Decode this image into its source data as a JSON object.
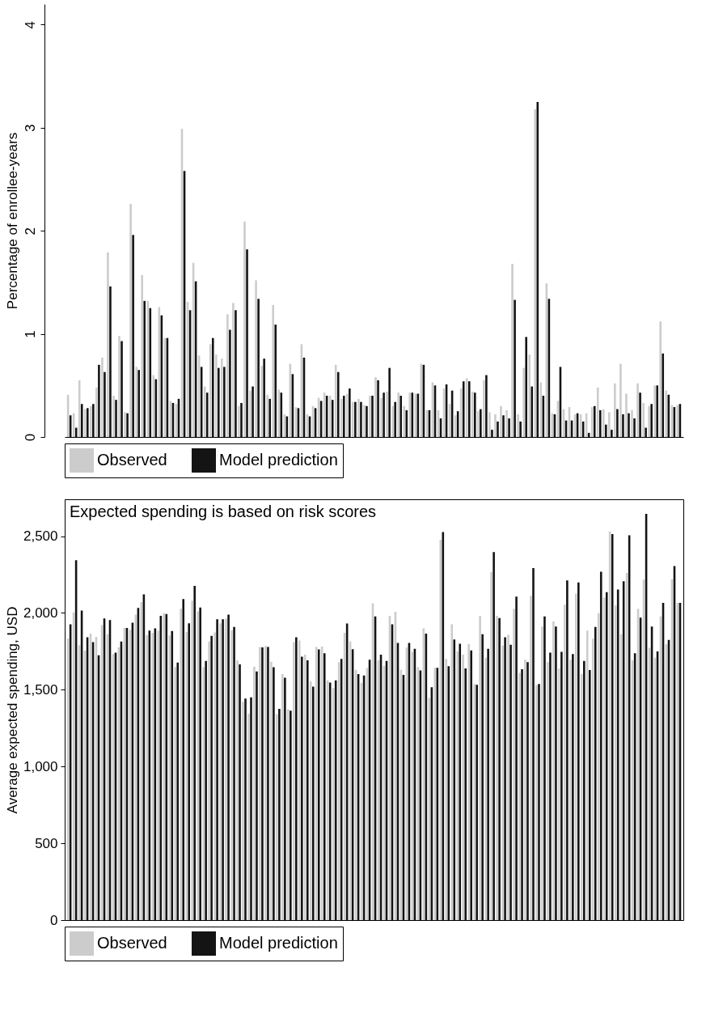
{
  "chart_data": [
    {
      "type": "bar",
      "ylabel": "Percentage of enrollee-years",
      "ylim": [
        0,
        4.2
      ],
      "yticks": [
        0,
        1,
        2,
        3,
        4
      ],
      "grid": false,
      "legend": "bottom",
      "tick_labels": "y",
      "categories": [
        null,
        null,
        null,
        null,
        null,
        null,
        null,
        null,
        null,
        null,
        null,
        null,
        null,
        null,
        null,
        null,
        null,
        null,
        null,
        null,
        null,
        null,
        null,
        null,
        null,
        null,
        null,
        null,
        null,
        null,
        null,
        null,
        null,
        null,
        null,
        null,
        null,
        null,
        null,
        null,
        null,
        null,
        null,
        null,
        null,
        null,
        null,
        null,
        null,
        null,
        null,
        null,
        null,
        null,
        null,
        null,
        null,
        null,
        null,
        null,
        null,
        null,
        null,
        null,
        null,
        null,
        null,
        null,
        null,
        null,
        null,
        null,
        null,
        null,
        null,
        null,
        null,
        null,
        null,
        null,
        null,
        null,
        null,
        null,
        null,
        null,
        null,
        null,
        null,
        null,
        null,
        null,
        null,
        null,
        null,
        null,
        null,
        null,
        null,
        null,
        null,
        null,
        null,
        null,
        null,
        null,
        null,
        null
      ],
      "series": [
        {
          "name": "Observed",
          "color": "#cccccc",
          "values": [
            0.41,
            0.23,
            0.55,
            0.27,
            0.3,
            0.48,
            0.77,
            1.79,
            0.4,
            0.98,
            0.24,
            2.26,
            0.68,
            1.57,
            1.32,
            0.6,
            1.26,
            0.96,
            0.35,
            0.32,
            2.99,
            1.31,
            1.69,
            0.79,
            0.49,
            0.9,
            0.8,
            0.76,
            1.19,
            1.3,
            0.3,
            2.09,
            0.45,
            1.52,
            0.69,
            0.41,
            1.28,
            0.46,
            0.22,
            0.71,
            0.29,
            0.9,
            0.22,
            0.3,
            0.38,
            0.43,
            0.4,
            0.7,
            0.37,
            0.42,
            0.34,
            0.37,
            0.31,
            0.4,
            0.58,
            0.38,
            0.44,
            0.3,
            0.43,
            0.3,
            0.43,
            0.42,
            0.71,
            0.26,
            0.53,
            0.26,
            0.47,
            0.32,
            0.21,
            0.47,
            0.57,
            0.44,
            0.25,
            0.55,
            0.24,
            0.22,
            0.3,
            0.26,
            1.68,
            0.22,
            0.67,
            0.8,
            3.18,
            0.53,
            1.49,
            0.23,
            0.35,
            0.27,
            0.29,
            0.22,
            0.22,
            0.23,
            0.29,
            0.48,
            0.27,
            0.24,
            0.52,
            0.71,
            0.42,
            0.26,
            0.52,
            0.33,
            0.3,
            0.5,
            1.12,
            0.45,
            0.31,
            0.31
          ]
        },
        {
          "name": "Model prediction",
          "color": "#141414",
          "values": [
            0.21,
            0.09,
            0.32,
            0.28,
            0.32,
            0.7,
            0.63,
            1.46,
            0.36,
            0.93,
            0.23,
            1.96,
            0.65,
            1.32,
            1.25,
            0.56,
            1.18,
            0.96,
            0.33,
            0.37,
            2.58,
            1.23,
            1.51,
            0.68,
            0.43,
            0.96,
            0.67,
            0.68,
            1.04,
            1.23,
            0.33,
            1.82,
            0.49,
            1.34,
            0.76,
            0.37,
            1.09,
            0.43,
            0.2,
            0.61,
            0.28,
            0.77,
            0.2,
            0.28,
            0.35,
            0.4,
            0.36,
            0.63,
            0.4,
            0.47,
            0.34,
            0.34,
            0.3,
            0.4,
            0.55,
            0.43,
            0.67,
            0.34,
            0.4,
            0.26,
            0.43,
            0.42,
            0.7,
            0.26,
            0.5,
            0.18,
            0.51,
            0.45,
            0.25,
            0.54,
            0.54,
            0.43,
            0.27,
            0.6,
            0.07,
            0.15,
            0.21,
            0.18,
            1.33,
            0.15,
            0.97,
            0.49,
            3.25,
            0.4,
            1.34,
            0.22,
            0.68,
            0.16,
            0.16,
            0.23,
            0.15,
            0.04,
            0.3,
            0.26,
            0.12,
            0.07,
            0.27,
            0.22,
            0.23,
            0.18,
            0.43,
            0.09,
            0.32,
            0.5,
            0.81,
            0.41,
            0.29,
            0.32
          ]
        }
      ]
    },
    {
      "type": "bar",
      "title": "Expected spending is based on risk scores",
      "ylabel": "Average expected spending, USD",
      "ylim": [
        0,
        2740
      ],
      "yticks": [
        0,
        500,
        {
          "value": 1000,
          "label": "1,000"
        },
        {
          "value": 1500,
          "label": "1,500"
        },
        {
          "value": 2000,
          "label": "2,000"
        },
        {
          "value": 2500,
          "label": "2,500"
        }
      ],
      "grid": false,
      "legend": "bottom",
      "tick_labels": "y",
      "categories": [
        null,
        null,
        null,
        null,
        null,
        null,
        null,
        null,
        null,
        null,
        null,
        null,
        null,
        null,
        null,
        null,
        null,
        null,
        null,
        null,
        null,
        null,
        null,
        null,
        null,
        null,
        null,
        null,
        null,
        null,
        null,
        null,
        null,
        null,
        null,
        null,
        null,
        null,
        null,
        null,
        null,
        null,
        null,
        null,
        null,
        null,
        null,
        null,
        null,
        null,
        null,
        null,
        null,
        null,
        null,
        null,
        null,
        null,
        null,
        null,
        null,
        null,
        null,
        null,
        null,
        null,
        null,
        null,
        null,
        null,
        null,
        null,
        null,
        null,
        null,
        null,
        null,
        null,
        null,
        null,
        null,
        null,
        null,
        null,
        null,
        null,
        null,
        null,
        null,
        null,
        null,
        null,
        null,
        null,
        null,
        null,
        null,
        null,
        null,
        null,
        null,
        null,
        null,
        null,
        null,
        null,
        null,
        null,
        null
      ],
      "series": [
        {
          "name": "Observed",
          "color": "#cccccc",
          "values": [
            1832,
            2003,
            1790,
            1755,
            1865,
            1844,
            1921,
            1861,
            1732,
            1776,
            1902,
            1890,
            1989,
            2071,
            1856,
            1870,
            1885,
            1998,
            1853,
            1648,
            2027,
            1877,
            2080,
            2010,
            1648,
            1814,
            1873,
            1933,
            1964,
            1887,
            1691,
            1421,
            1344,
            1650,
            1779,
            1784,
            1682,
            1341,
            1602,
            1373,
            1810,
            1820,
            1728,
            1554,
            1778,
            1781,
            1561,
            1511,
            1679,
            1870,
            1814,
            1629,
            1544,
            1641,
            2063,
            1691,
            1655,
            1981,
            2008,
            1629,
            1776,
            1747,
            1646,
            1899,
            1446,
            1643,
            2476,
            1701,
            1926,
            1750,
            1728,
            1797,
            1537,
            1981,
            1708,
            2266,
            1981,
            1788,
            1858,
            2027,
            1610,
            1696,
            2112,
            1532,
            1912,
            1679,
            1945,
            1639,
            2054,
            1696,
            2126,
            1602,
            1885,
            1833,
            1998,
            2100,
            2531,
            2049,
            1861,
            2261,
            1691,
            2027,
            2217,
            1773,
            1708,
            1977,
            1797,
            2220,
            2066
          ]
        },
        {
          "name": "Model prediction",
          "color": "#141414",
          "values": [
            1926,
            2343,
            2015,
            1841,
            1810,
            1725,
            1964,
            1954,
            1742,
            1814,
            1902,
            1937,
            2032,
            2121,
            1885,
            1899,
            1981,
            1993,
            1882,
            1677,
            2090,
            1933,
            2176,
            2035,
            1687,
            1851,
            1959,
            1959,
            1989,
            1909,
            1665,
            1443,
            1451,
            1619,
            1776,
            1779,
            1646,
            1375,
            1578,
            1363,
            1841,
            1715,
            1691,
            1520,
            1762,
            1737,
            1547,
            1561,
            1701,
            1931,
            1764,
            1602,
            1593,
            1696,
            1977,
            1728,
            1687,
            1926,
            1805,
            1597,
            1805,
            1767,
            1626,
            1865,
            1516,
            1643,
            2527,
            1653,
            1827,
            1800,
            1639,
            1756,
            1532,
            1861,
            1767,
            2396,
            1967,
            1841,
            1793,
            2107,
            1634,
            1679,
            2292,
            1537,
            1977,
            1742,
            1912,
            1747,
            2212,
            1732,
            2198,
            1687,
            1628,
            1909,
            2269,
            2135,
            2514,
            2152,
            2207,
            2505,
            1737,
            1969,
            2645,
            1912,
            1750,
            2066,
            1824,
            2305,
            2066
          ]
        }
      ]
    }
  ]
}
